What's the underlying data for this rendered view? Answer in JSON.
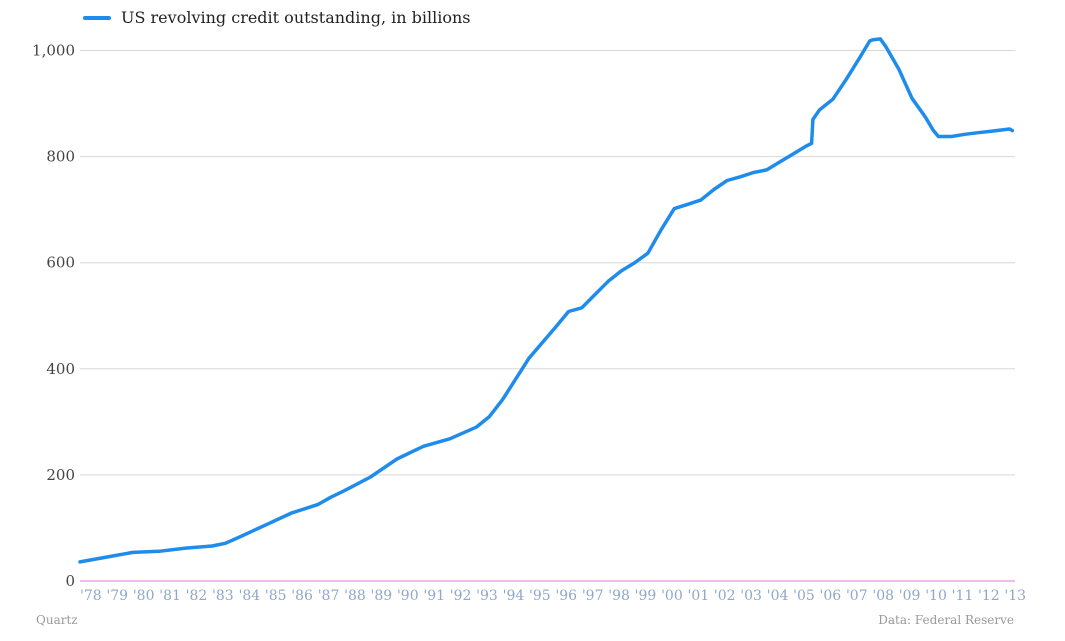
{
  "chart_data": {
    "type": "line",
    "series": [
      {
        "name": "US revolving credit outstanding, in billions",
        "points": [
          [
            1978.0,
            36
          ],
          [
            1979.0,
            45
          ],
          [
            1980.0,
            54
          ],
          [
            1981.0,
            56
          ],
          [
            1982.0,
            62
          ],
          [
            1983.0,
            66
          ],
          [
            1983.5,
            71
          ],
          [
            1984.0,
            82
          ],
          [
            1985.0,
            105
          ],
          [
            1986.0,
            128
          ],
          [
            1987.0,
            144
          ],
          [
            1987.5,
            158
          ],
          [
            1988.0,
            170
          ],
          [
            1989.0,
            196
          ],
          [
            1990.0,
            230
          ],
          [
            1991.0,
            254
          ],
          [
            1992.0,
            268
          ],
          [
            1993.0,
            290
          ],
          [
            1993.5,
            310
          ],
          [
            1994.0,
            342
          ],
          [
            1995.0,
            420
          ],
          [
            1996.0,
            478
          ],
          [
            1996.5,
            508
          ],
          [
            1997.0,
            515
          ],
          [
            1997.5,
            540
          ],
          [
            1998.0,
            565
          ],
          [
            1998.5,
            585
          ],
          [
            1999.0,
            600
          ],
          [
            1999.5,
            618
          ],
          [
            2000.0,
            662
          ],
          [
            2000.5,
            702
          ],
          [
            2001.0,
            710
          ],
          [
            2001.5,
            718
          ],
          [
            2002.0,
            738
          ],
          [
            2002.5,
            755
          ],
          [
            2003.0,
            762
          ],
          [
            2003.5,
            770
          ],
          [
            2004.0,
            775
          ],
          [
            2004.5,
            790
          ],
          [
            2005.0,
            805
          ],
          [
            2005.5,
            820
          ],
          [
            2005.7,
            825
          ],
          [
            2005.75,
            870
          ],
          [
            2006.0,
            888
          ],
          [
            2006.5,
            908
          ],
          [
            2007.0,
            945
          ],
          [
            2007.5,
            985
          ],
          [
            2007.9,
            1018
          ],
          [
            2008.0,
            1020
          ],
          [
            2008.3,
            1022
          ],
          [
            2008.5,
            1008
          ],
          [
            2009.0,
            965
          ],
          [
            2009.5,
            910
          ],
          [
            2010.0,
            875
          ],
          [
            2010.3,
            850
          ],
          [
            2010.5,
            838
          ],
          [
            2011.0,
            838
          ],
          [
            2011.5,
            842
          ],
          [
            2012.0,
            845
          ],
          [
            2012.5,
            848
          ],
          [
            2013.0,
            851
          ],
          [
            2013.2,
            852
          ],
          [
            2013.3,
            849
          ]
        ]
      }
    ],
    "ylim": [
      0,
      1050
    ],
    "yticks": [
      "0",
      "200",
      "400",
      "600",
      "800",
      "1,000"
    ],
    "yticks_values": [
      0,
      200,
      400,
      600,
      800,
      1000
    ],
    "xticks": [
      "'78",
      "'79",
      "'80",
      "'81",
      "'82",
      "'83",
      "'84",
      "'85",
      "'86",
      "'87",
      "'88",
      "'89",
      "'90",
      "'91",
      "'92",
      "'93",
      "'94",
      "'95",
      "'96",
      "'97",
      "'98",
      "'99",
      "'00",
      "'01",
      "'02",
      "'03",
      "'04",
      "'05",
      "'06",
      "'07",
      "'08",
      "'09",
      "'10",
      "'11",
      "'12",
      "'13"
    ],
    "xticks_values": [
      1978,
      1979,
      1980,
      1981,
      1982,
      1983,
      1984,
      1985,
      1986,
      1987,
      1988,
      1989,
      1990,
      1991,
      1992,
      1993,
      1994,
      1995,
      1996,
      1997,
      1998,
      1999,
      2000,
      2001,
      2002,
      2003,
      2004,
      2005,
      2006,
      2007,
      2008,
      2009,
      2010,
      2011,
      2012,
      2013
    ],
    "xlim": [
      1978,
      2013.4
    ],
    "grid": true,
    "legend": "top-left",
    "colors": {
      "line": "#1f8ceb",
      "grid": "#d8d8d8",
      "baseline": "#f0a6e8",
      "ytick": "#444444",
      "xtick": "#8fa7c9"
    }
  },
  "credits": {
    "left": "Quartz",
    "right": "Data: Federal Reserve"
  }
}
